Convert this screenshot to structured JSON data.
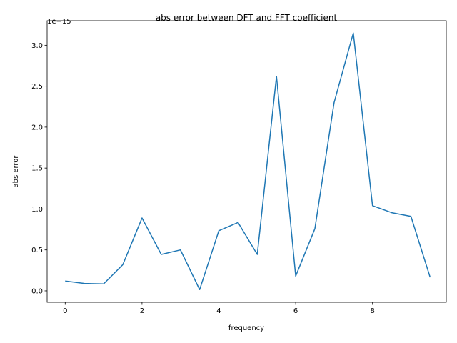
{
  "chart_data": {
    "type": "line",
    "title": "abs error between DFT and FFT coefficient",
    "xlabel": "frequency",
    "ylabel": "abs error",
    "y_scale_label": "1e−15",
    "y_scale_factor": 1e-15,
    "xlim": [
      -0.47,
      9.92
    ],
    "ylim": [
      -0.14,
      3.3
    ],
    "x_ticks": [
      0,
      2,
      4,
      6,
      8
    ],
    "y_ticks": [
      0.0,
      0.5,
      1.0,
      1.5,
      2.0,
      2.5,
      3.0
    ],
    "x_tick_labels": [
      "0",
      "2",
      "4",
      "6",
      "8"
    ],
    "y_tick_labels": [
      "0.0",
      "0.5",
      "1.0",
      "1.5",
      "2.0",
      "2.5",
      "3.0"
    ],
    "grid": false,
    "series": [
      {
        "color": "#1f77b4",
        "x": [
          0,
          0.5,
          1,
          1.5,
          2,
          2.5,
          3,
          3.5,
          4,
          4.5,
          5,
          5.5,
          6,
          6.5,
          7,
          7.5,
          8,
          8.5,
          9,
          9.5
        ],
        "values": [
          0.12,
          0.09,
          0.085,
          0.32,
          0.89,
          0.445,
          0.5,
          0.015,
          0.735,
          0.835,
          0.445,
          2.62,
          0.18,
          0.76,
          2.3,
          3.15,
          1.04,
          0.955,
          0.91,
          0.165
        ]
      }
    ]
  }
}
